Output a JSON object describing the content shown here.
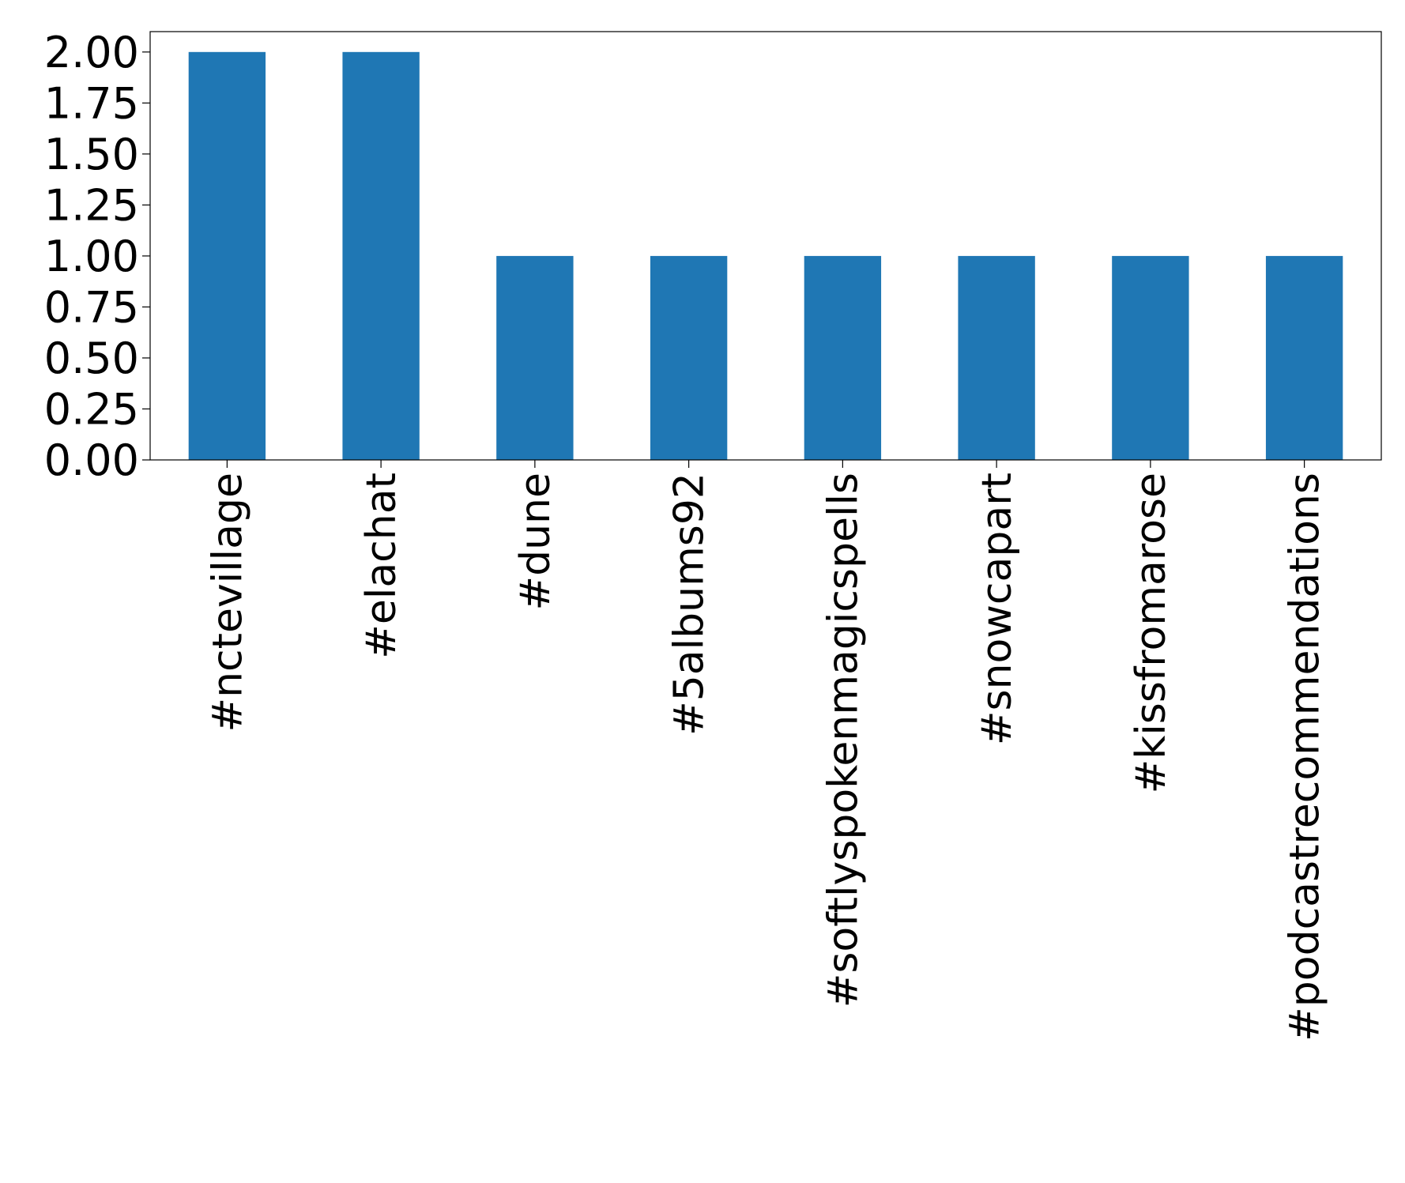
{
  "chart_data": {
    "type": "bar",
    "title": "",
    "xlabel": "",
    "ylabel": "",
    "categories": [
      "#nctevillage",
      "#elachat",
      "#dune",
      "#5albums92",
      "#softlyspokenmagicspells",
      "#snowcapart",
      "#kissfromarose",
      "#podcastrecommendations"
    ],
    "values": [
      2,
      2,
      1,
      1,
      1,
      1,
      1,
      1
    ],
    "ylim": [
      0,
      2.1
    ],
    "yticks": [
      "0.00",
      "0.25",
      "0.50",
      "0.75",
      "1.00",
      "1.25",
      "1.50",
      "1.75",
      "2.00"
    ],
    "bar_color": "#1f77b4",
    "grid": false,
    "legend": "none"
  }
}
